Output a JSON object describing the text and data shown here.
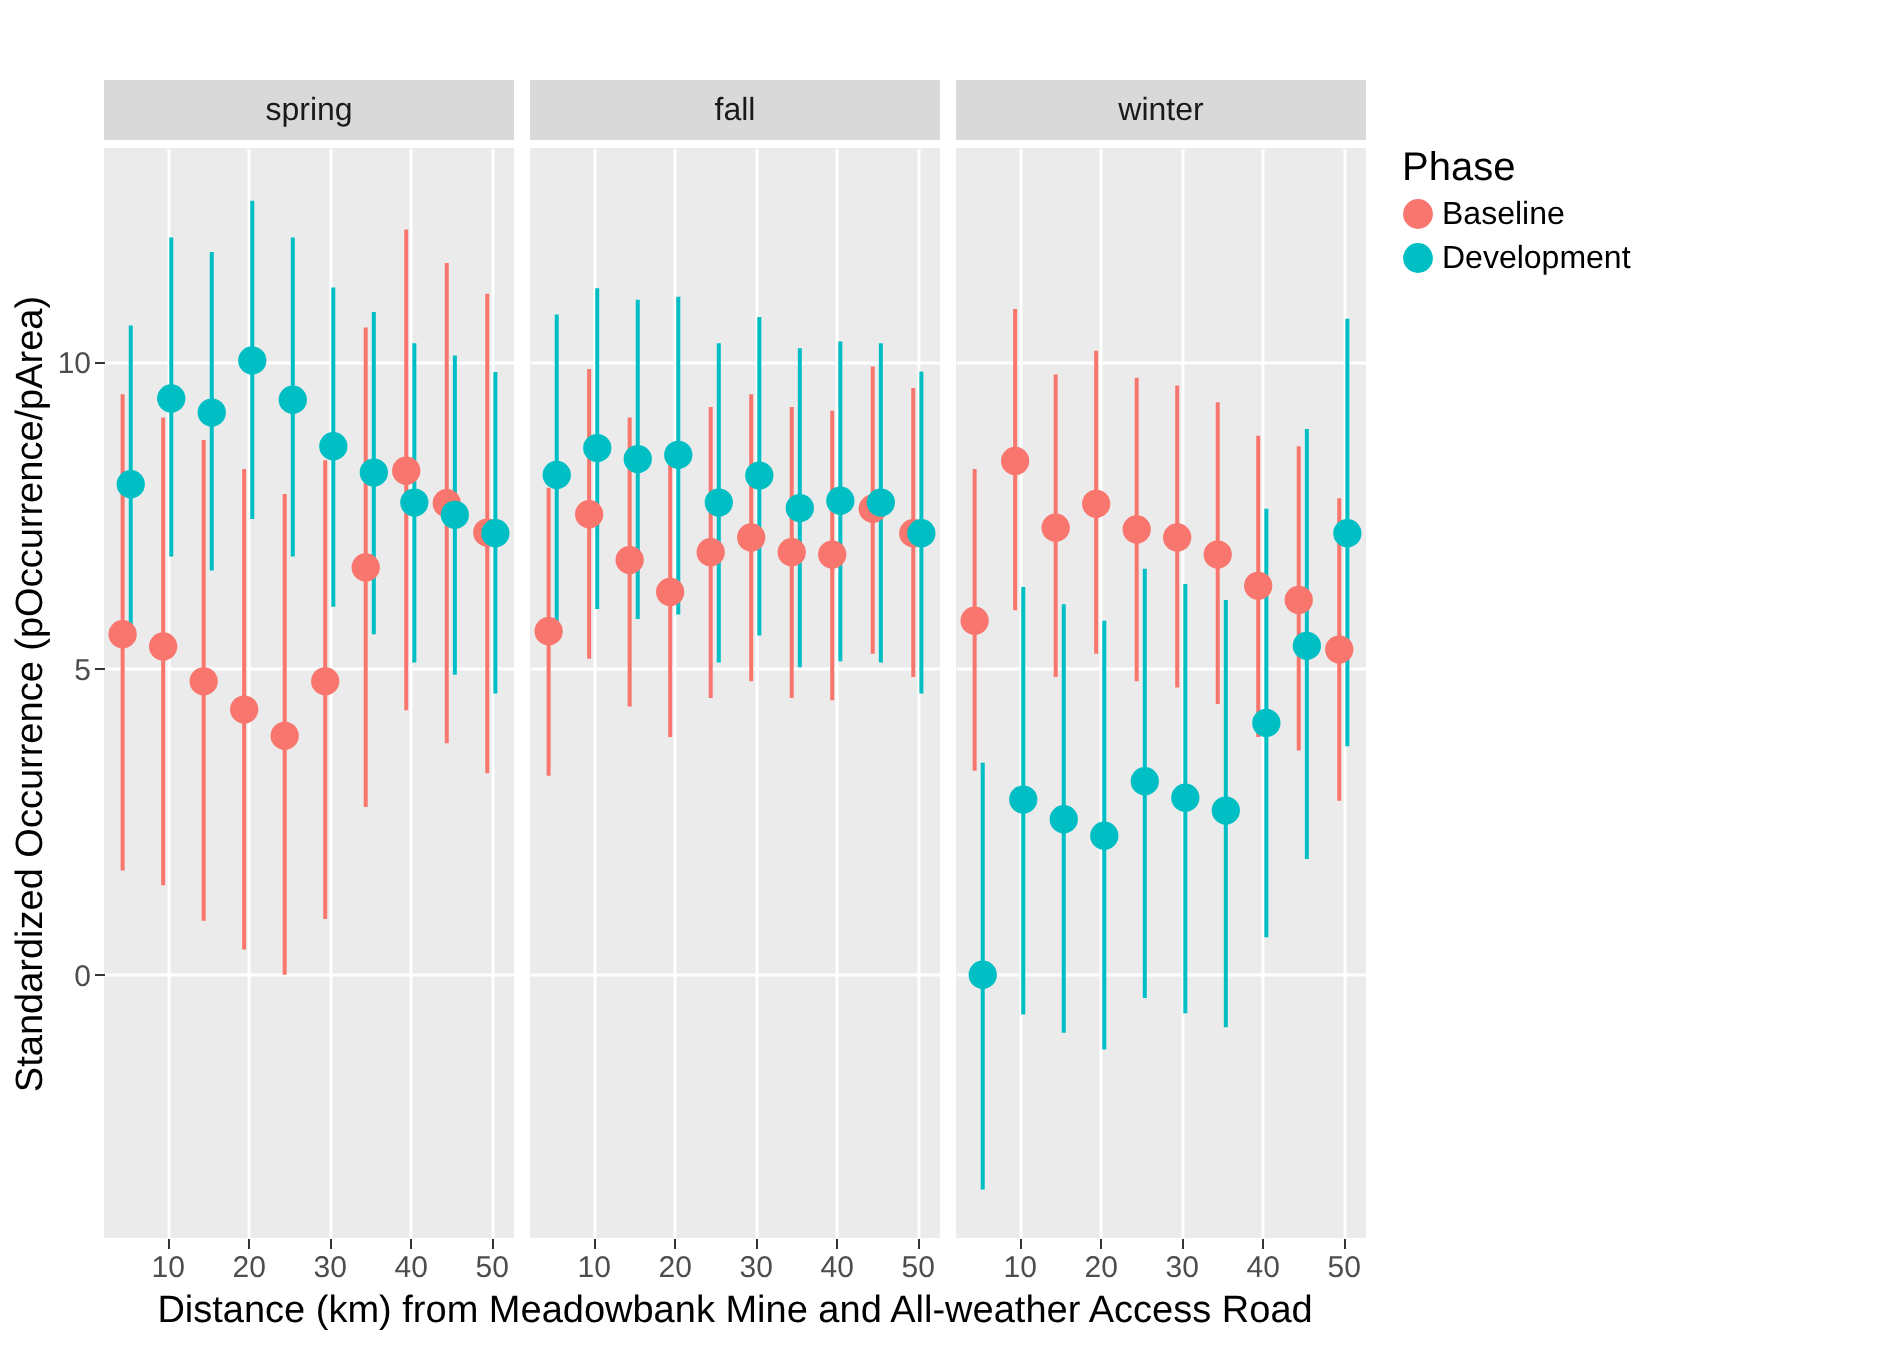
{
  "chart_data": [
    {
      "type": "scatter",
      "title": "spring",
      "ylabel": "Standardized Occurrence (pOccurrence/pArea)",
      "xlim": [
        2.2,
        52.8
      ],
      "xticks": [
        10,
        20,
        30,
        40,
        50
      ],
      "ylim": [
        -4.3,
        13.5
      ],
      "yticks": [
        0,
        5,
        10
      ],
      "grid": true,
      "marker": "circle",
      "legend": "right",
      "legend_title": "Phase",
      "series": [
        {
          "name": "Baseline",
          "color": "#f8766d",
          "x": [
            4.5,
            9.5,
            14.5,
            19.5,
            24.5,
            29.5,
            34.5,
            39.5,
            44.5,
            49.5
          ],
          "values": [
            5.56,
            5.36,
            4.79,
            4.33,
            3.9,
            4.79,
            6.65,
            8.23,
            7.7,
            7.22
          ],
          "errors": [
            [
              1.7,
              9.48
            ],
            [
              1.46,
              9.1
            ],
            [
              0.88,
              8.73
            ],
            [
              0.41,
              8.26
            ],
            [
              0.0,
              7.85
            ],
            [
              0.91,
              8.4
            ],
            [
              2.74,
              10.57
            ],
            [
              4.32,
              12.17
            ],
            [
              3.78,
              11.62
            ],
            [
              3.29,
              11.12
            ]
          ]
        },
        {
          "name": "Development",
          "color": "#00bfc4",
          "x": [
            5.5,
            10.5,
            15.5,
            20.5,
            25.5,
            30.5,
            35.5,
            40.5,
            45.5,
            50.5
          ],
          "values": [
            8.01,
            9.41,
            9.18,
            10.03,
            9.39,
            8.63,
            8.2,
            7.71,
            7.51,
            7.21
          ],
          "errors": [
            [
              5.5,
              10.6
            ],
            [
              6.83,
              12.04
            ],
            [
              6.6,
              11.8
            ],
            [
              7.44,
              12.64
            ],
            [
              6.83,
              12.04
            ],
            [
              6.01,
              11.22
            ],
            [
              5.56,
              10.82
            ],
            [
              5.1,
              10.31
            ],
            [
              4.9,
              10.11
            ],
            [
              4.59,
              9.84
            ]
          ]
        }
      ]
    },
    {
      "type": "scatter",
      "title": "fall",
      "xlabel": "Distance (km) from Meadowbank Mine and All-weather Access Road",
      "xlim": [
        2.2,
        52.8
      ],
      "xticks": [
        10,
        20,
        30,
        40,
        50
      ],
      "ylim": [
        -4.3,
        13.5
      ],
      "yticks": [
        0,
        5,
        10
      ],
      "tick_labels": "x",
      "grid": true,
      "marker": "circle",
      "legend": "right",
      "series": [
        {
          "name": "Baseline",
          "color": "#f8766d",
          "x": [
            4.5,
            9.5,
            14.5,
            19.5,
            24.5,
            29.5,
            34.5,
            39.5,
            44.5,
            49.5
          ],
          "values": [
            5.61,
            7.52,
            6.77,
            6.25,
            6.9,
            7.14,
            6.9,
            6.86,
            7.61,
            7.21
          ],
          "errors": [
            [
              3.25,
              7.95
            ],
            [
              5.16,
              9.89
            ],
            [
              4.38,
              9.1
            ],
            [
              3.88,
              8.39
            ],
            [
              4.52,
              9.27
            ],
            [
              4.79,
              9.48
            ],
            [
              4.52,
              9.27
            ],
            [
              4.48,
              9.21
            ],
            [
              5.24,
              9.93
            ],
            [
              4.86,
              9.58
            ]
          ]
        },
        {
          "name": "Development",
          "color": "#00bfc4",
          "x": [
            5.5,
            10.5,
            15.5,
            20.5,
            25.5,
            30.5,
            35.5,
            40.5,
            45.5,
            50.5
          ],
          "values": [
            8.16,
            8.6,
            8.42,
            8.49,
            7.71,
            8.15,
            7.62,
            7.74,
            7.71,
            7.21
          ],
          "errors": [
            [
              5.54,
              10.78
            ],
            [
              5.97,
              11.21
            ],
            [
              5.81,
              11.02
            ],
            [
              5.88,
              11.07
            ],
            [
              5.1,
              10.31
            ],
            [
              5.54,
              10.74
            ],
            [
              5.02,
              10.23
            ],
            [
              5.12,
              10.34
            ],
            [
              5.1,
              10.31
            ],
            [
              4.59,
              9.85
            ]
          ]
        }
      ]
    },
    {
      "type": "scatter",
      "title": "winter",
      "xlim": [
        2.2,
        52.8
      ],
      "xticks": [
        10,
        20,
        30,
        40,
        50
      ],
      "ylim": [
        -4.3,
        13.5
      ],
      "yticks": [
        0,
        5,
        10
      ],
      "tick_labels": "x",
      "grid": true,
      "marker": "circle",
      "legend": "right",
      "series": [
        {
          "name": "Baseline",
          "color": "#f8766d",
          "x": [
            4.5,
            9.5,
            14.5,
            19.5,
            24.5,
            29.5,
            34.5,
            39.5,
            44.5,
            49.5
          ],
          "values": [
            5.78,
            8.39,
            7.3,
            7.69,
            7.27,
            7.14,
            6.86,
            6.35,
            6.12,
            5.31
          ],
          "errors": [
            [
              3.33,
              8.26
            ],
            [
              5.95,
              10.87
            ],
            [
              4.86,
              9.8
            ],
            [
              5.24,
              10.19
            ],
            [
              4.79,
              9.75
            ],
            [
              4.69,
              9.62
            ],
            [
              4.42,
              9.35
            ],
            [
              3.88,
              8.8
            ],
            [
              3.66,
              8.63
            ],
            [
              2.84,
              7.78
            ]
          ]
        },
        {
          "name": "Development",
          "color": "#00bfc4",
          "x": [
            5.5,
            10.5,
            15.5,
            20.5,
            25.5,
            30.5,
            35.5,
            40.5,
            45.5,
            50.5
          ],
          "values": [
            0.0,
            2.86,
            2.54,
            2.27,
            3.16,
            2.89,
            2.68,
            4.11,
            5.37,
            7.21
          ],
          "errors": [
            [
              -3.51,
              3.46
            ],
            [
              -0.65,
              6.33
            ],
            [
              -0.95,
              6.05
            ],
            [
              -1.22,
              5.78
            ],
            [
              -0.38,
              6.63
            ],
            [
              -0.63,
              6.38
            ],
            [
              -0.86,
              6.12
            ],
            [
              0.61,
              7.61
            ],
            [
              1.89,
              8.91
            ],
            [
              3.73,
              10.71
            ]
          ]
        }
      ]
    }
  ]
}
